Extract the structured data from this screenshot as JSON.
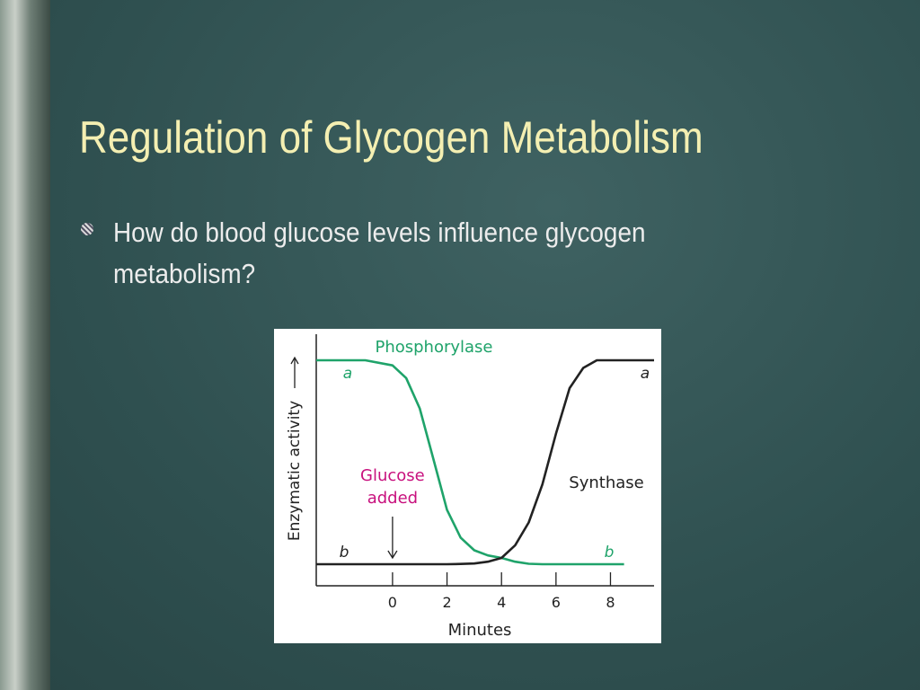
{
  "slide": {
    "title": "Regulation of Glycogen Metabolism",
    "bullets": [
      "How do blood glucose levels influence glycogen metabolism?"
    ]
  },
  "chart_data": {
    "type": "line",
    "x_label": "Minutes",
    "y_label": "Enzymatic activity",
    "x": [
      -2.8,
      -1,
      0,
      0.5,
      1,
      1.5,
      2,
      2.5,
      3,
      3.5,
      4,
      4.5,
      5,
      5.5,
      6,
      6.5,
      7,
      7.5,
      8,
      8.5,
      9,
      9.6
    ],
    "series": [
      {
        "name": "Phosphorylase",
        "color": "#1fa36a",
        "values": [
          8.9,
          8.9,
          8.7,
          8.2,
          7,
          5,
          3,
          1.9,
          1.4,
          1.2,
          1.1,
          0.95,
          0.87,
          0.85,
          0.85,
          0.85,
          0.85,
          0.85,
          0.85,
          0.85,
          null,
          null
        ]
      },
      {
        "name": "Synthase",
        "color": "#222222",
        "values": [
          0.85,
          0.85,
          0.85,
          0.85,
          0.85,
          0.85,
          0.85,
          0.86,
          0.88,
          0.95,
          1.1,
          1.6,
          2.5,
          4,
          6,
          7.8,
          8.6,
          8.9,
          8.9,
          8.9,
          8.9,
          8.9
        ]
      }
    ],
    "xlim": [
      -2.8,
      9.6
    ],
    "ylim": [
      0,
      10
    ],
    "xticks": [
      0,
      2,
      4,
      6,
      8
    ],
    "annotations": [
      "a",
      "a",
      "b",
      "b"
    ],
    "event_label": [
      "Glucose",
      "added"
    ],
    "event_color": "#c8117e",
    "event_x": 0
  }
}
